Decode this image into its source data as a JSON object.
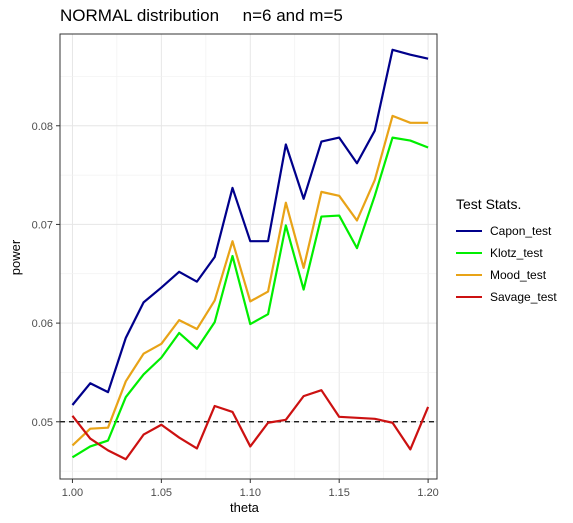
{
  "chart_data": {
    "type": "line",
    "title": "NORMAL distribution     n=6 and m=5",
    "xlabel": "theta",
    "ylabel": "power",
    "xlim": [
      0.993,
      1.205
    ],
    "ylim": [
      0.0442,
      0.0893
    ],
    "x_ticks": [
      1.0,
      1.05,
      1.1,
      1.15,
      1.2
    ],
    "x_tick_labels": [
      "1.00",
      "1.05",
      "1.10",
      "1.15",
      "1.20"
    ],
    "y_ticks": [
      0.05,
      0.06,
      0.07,
      0.08
    ],
    "y_tick_labels": [
      "0.05",
      "0.06",
      "0.07",
      "0.08"
    ],
    "grid": true,
    "legend_title": "Test Stats.",
    "legend_position": "right",
    "reference_line": {
      "y": 0.05,
      "style": "dashed",
      "color": "#000000"
    },
    "x": [
      1.0,
      1.01,
      1.02,
      1.03,
      1.04,
      1.05,
      1.06,
      1.07,
      1.08,
      1.09,
      1.1,
      1.11,
      1.12,
      1.13,
      1.14,
      1.15,
      1.16,
      1.17,
      1.18,
      1.19,
      1.2
    ],
    "series": [
      {
        "name": "Capon_test",
        "color": "#00008b",
        "values": [
          0.0517,
          0.0539,
          0.053,
          0.0585,
          0.0621,
          0.0636,
          0.0652,
          0.0642,
          0.0667,
          0.0737,
          0.0683,
          0.0683,
          0.0781,
          0.0726,
          0.0784,
          0.0788,
          0.0762,
          0.0795,
          0.0877,
          0.0872,
          0.0868
        ]
      },
      {
        "name": "Klotz_test",
        "color": "#00ee00",
        "values": [
          0.0464,
          0.0475,
          0.0481,
          0.0525,
          0.0548,
          0.0565,
          0.059,
          0.0574,
          0.0601,
          0.0668,
          0.0599,
          0.0609,
          0.0699,
          0.0634,
          0.0708,
          0.0709,
          0.0676,
          0.0729,
          0.0788,
          0.0785,
          0.0778
        ]
      },
      {
        "name": "Mood_test",
        "color": "#e8a317",
        "values": [
          0.0476,
          0.0493,
          0.0494,
          0.0541,
          0.0569,
          0.0579,
          0.0603,
          0.0594,
          0.0623,
          0.0683,
          0.0622,
          0.0632,
          0.0722,
          0.0656,
          0.0733,
          0.0729,
          0.0704,
          0.0745,
          0.081,
          0.0803,
          0.0803
        ]
      },
      {
        "name": "Savage_test",
        "color": "#cc1111",
        "values": [
          0.0506,
          0.0483,
          0.0471,
          0.0462,
          0.0487,
          0.0497,
          0.0484,
          0.0473,
          0.0516,
          0.051,
          0.0475,
          0.0499,
          0.0502,
          0.0526,
          0.0532,
          0.0505,
          0.0504,
          0.0503,
          0.0499,
          0.0472,
          0.0515
        ]
      }
    ]
  }
}
